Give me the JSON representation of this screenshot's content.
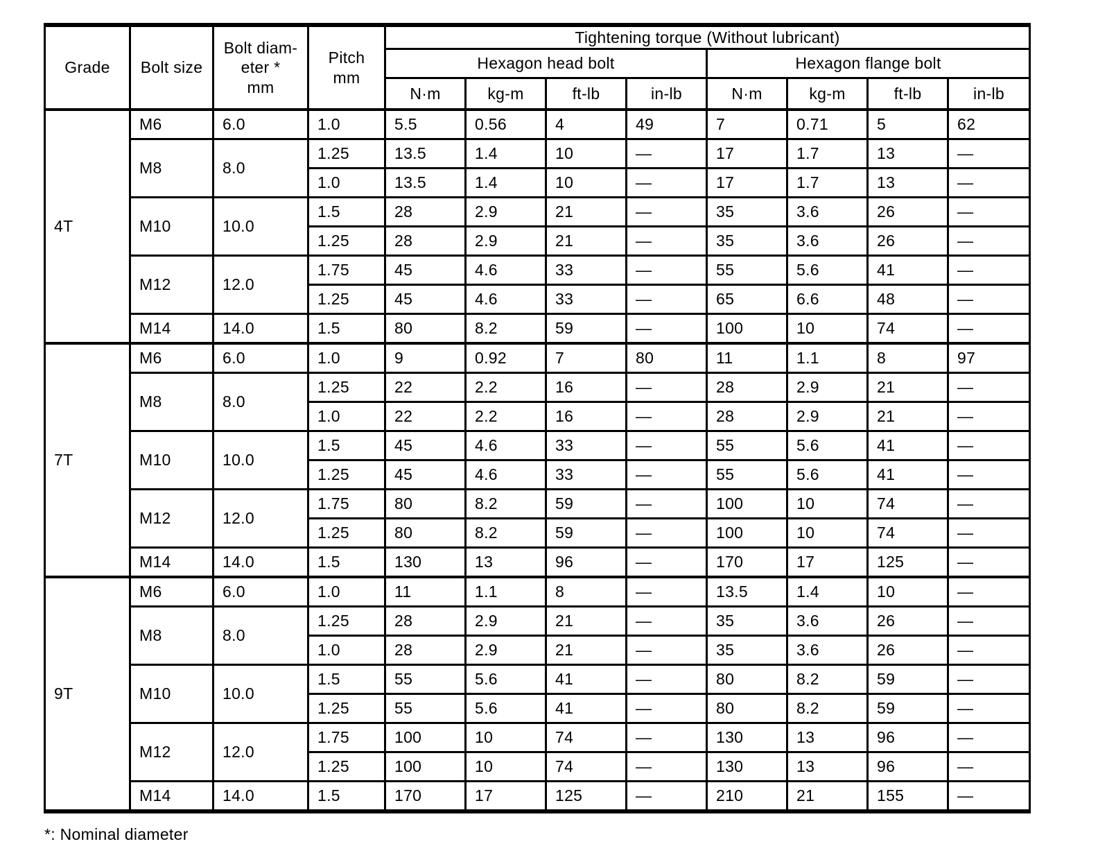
{
  "table": {
    "headers": {
      "grade": "Grade",
      "bolt_size": "Bolt size",
      "bolt_diameter_lines": [
        "Bolt diam-",
        "eter *",
        "mm"
      ],
      "pitch_lines": [
        "Pitch",
        "mm"
      ],
      "torque_title": "Tightening torque (Without lubricant)",
      "head_bolt": "Hexagon head bolt",
      "flange_bolt": "Hexagon flange bolt",
      "units": [
        "N·m",
        "kg-m",
        "ft-lb",
        "in-lb",
        "N·m",
        "kg-m",
        "ft-lb",
        "in-lb"
      ]
    },
    "sections": [
      {
        "grade": "4T",
        "groups": [
          {
            "bolt_size": "M6",
            "diameter": "6.0",
            "rows": [
              {
                "pitch": "1.0",
                "values": [
                  "5.5",
                  "0.56",
                  "4",
                  "49",
                  "7",
                  "0.71",
                  "5",
                  "62"
                ]
              }
            ]
          },
          {
            "bolt_size": "M8",
            "diameter": "8.0",
            "rows": [
              {
                "pitch": "1.25",
                "values": [
                  "13.5",
                  "1.4",
                  "10",
                  "—",
                  "17",
                  "1.7",
                  "13",
                  "—"
                ]
              },
              {
                "pitch": "1.0",
                "values": [
                  "13.5",
                  "1.4",
                  "10",
                  "—",
                  "17",
                  "1.7",
                  "13",
                  "—"
                ]
              }
            ]
          },
          {
            "bolt_size": "M10",
            "diameter": "10.0",
            "rows": [
              {
                "pitch": "1.5",
                "values": [
                  "28",
                  "2.9",
                  "21",
                  "—",
                  "35",
                  "3.6",
                  "26",
                  "—"
                ]
              },
              {
                "pitch": "1.25",
                "values": [
                  "28",
                  "2.9",
                  "21",
                  "—",
                  "35",
                  "3.6",
                  "26",
                  "—"
                ]
              }
            ]
          },
          {
            "bolt_size": "M12",
            "diameter": "12.0",
            "rows": [
              {
                "pitch": "1.75",
                "values": [
                  "45",
                  "4.6",
                  "33",
                  "—",
                  "55",
                  "5.6",
                  "41",
                  "—"
                ]
              },
              {
                "pitch": "1.25",
                "values": [
                  "45",
                  "4.6",
                  "33",
                  "—",
                  "65",
                  "6.6",
                  "48",
                  "—"
                ]
              }
            ]
          },
          {
            "bolt_size": "M14",
            "diameter": "14.0",
            "rows": [
              {
                "pitch": "1.5",
                "values": [
                  "80",
                  "8.2",
                  "59",
                  "—",
                  "100",
                  "10",
                  "74",
                  "—"
                ]
              }
            ]
          }
        ]
      },
      {
        "grade": "7T",
        "groups": [
          {
            "bolt_size": "M6",
            "diameter": "6.0",
            "rows": [
              {
                "pitch": "1.0",
                "values": [
                  "9",
                  "0.92",
                  "7",
                  "80",
                  "11",
                  "1.1",
                  "8",
                  "97"
                ]
              }
            ]
          },
          {
            "bolt_size": "M8",
            "diameter": "8.0",
            "rows": [
              {
                "pitch": "1.25",
                "values": [
                  "22",
                  "2.2",
                  "16",
                  "—",
                  "28",
                  "2.9",
                  "21",
                  "—"
                ]
              },
              {
                "pitch": "1.0",
                "values": [
                  "22",
                  "2.2",
                  "16",
                  "—",
                  "28",
                  "2.9",
                  "21",
                  "—"
                ]
              }
            ]
          },
          {
            "bolt_size": "M10",
            "diameter": "10.0",
            "rows": [
              {
                "pitch": "1.5",
                "values": [
                  "45",
                  "4.6",
                  "33",
                  "—",
                  "55",
                  "5.6",
                  "41",
                  "—"
                ]
              },
              {
                "pitch": "1.25",
                "values": [
                  "45",
                  "4.6",
                  "33",
                  "—",
                  "55",
                  "5.6",
                  "41",
                  "—"
                ]
              }
            ]
          },
          {
            "bolt_size": "M12",
            "diameter": "12.0",
            "rows": [
              {
                "pitch": "1.75",
                "values": [
                  "80",
                  "8.2",
                  "59",
                  "—",
                  "100",
                  "10",
                  "74",
                  "—"
                ]
              },
              {
                "pitch": "1.25",
                "values": [
                  "80",
                  "8.2",
                  "59",
                  "—",
                  "100",
                  "10",
                  "74",
                  "—"
                ]
              }
            ]
          },
          {
            "bolt_size": "M14",
            "diameter": "14.0",
            "rows": [
              {
                "pitch": "1.5",
                "values": [
                  "130",
                  "13",
                  "96",
                  "—",
                  "170",
                  "17",
                  "125",
                  "—"
                ]
              }
            ]
          }
        ]
      },
      {
        "grade": "9T",
        "groups": [
          {
            "bolt_size": "M6",
            "diameter": "6.0",
            "rows": [
              {
                "pitch": "1.0",
                "values": [
                  "11",
                  "1.1",
                  "8",
                  "—",
                  "13.5",
                  "1.4",
                  "10",
                  "—"
                ]
              }
            ]
          },
          {
            "bolt_size": "M8",
            "diameter": "8.0",
            "rows": [
              {
                "pitch": "1.25",
                "values": [
                  "28",
                  "2.9",
                  "21",
                  "—",
                  "35",
                  "3.6",
                  "26",
                  "—"
                ]
              },
              {
                "pitch": "1.0",
                "values": [
                  "28",
                  "2.9",
                  "21",
                  "—",
                  "35",
                  "3.6",
                  "26",
                  "—"
                ]
              }
            ]
          },
          {
            "bolt_size": "M10",
            "diameter": "10.0",
            "rows": [
              {
                "pitch": "1.5",
                "values": [
                  "55",
                  "5.6",
                  "41",
                  "—",
                  "80",
                  "8.2",
                  "59",
                  "—"
                ]
              },
              {
                "pitch": "1.25",
                "values": [
                  "55",
                  "5.6",
                  "41",
                  "—",
                  "80",
                  "8.2",
                  "59",
                  "—"
                ]
              }
            ]
          },
          {
            "bolt_size": "M12",
            "diameter": "12.0",
            "rows": [
              {
                "pitch": "1.75",
                "values": [
                  "100",
                  "10",
                  "74",
                  "—",
                  "130",
                  "13",
                  "96",
                  "—"
                ]
              },
              {
                "pitch": "1.25",
                "values": [
                  "100",
                  "10",
                  "74",
                  "—",
                  "130",
                  "13",
                  "96",
                  "—"
                ]
              }
            ]
          },
          {
            "bolt_size": "M14",
            "diameter": "14.0",
            "rows": [
              {
                "pitch": "1.5",
                "values": [
                  "170",
                  "17",
                  "125",
                  "—",
                  "210",
                  "21",
                  "155",
                  "—"
                ]
              }
            ]
          }
        ]
      }
    ],
    "footnote": "*: Nominal diameter"
  }
}
